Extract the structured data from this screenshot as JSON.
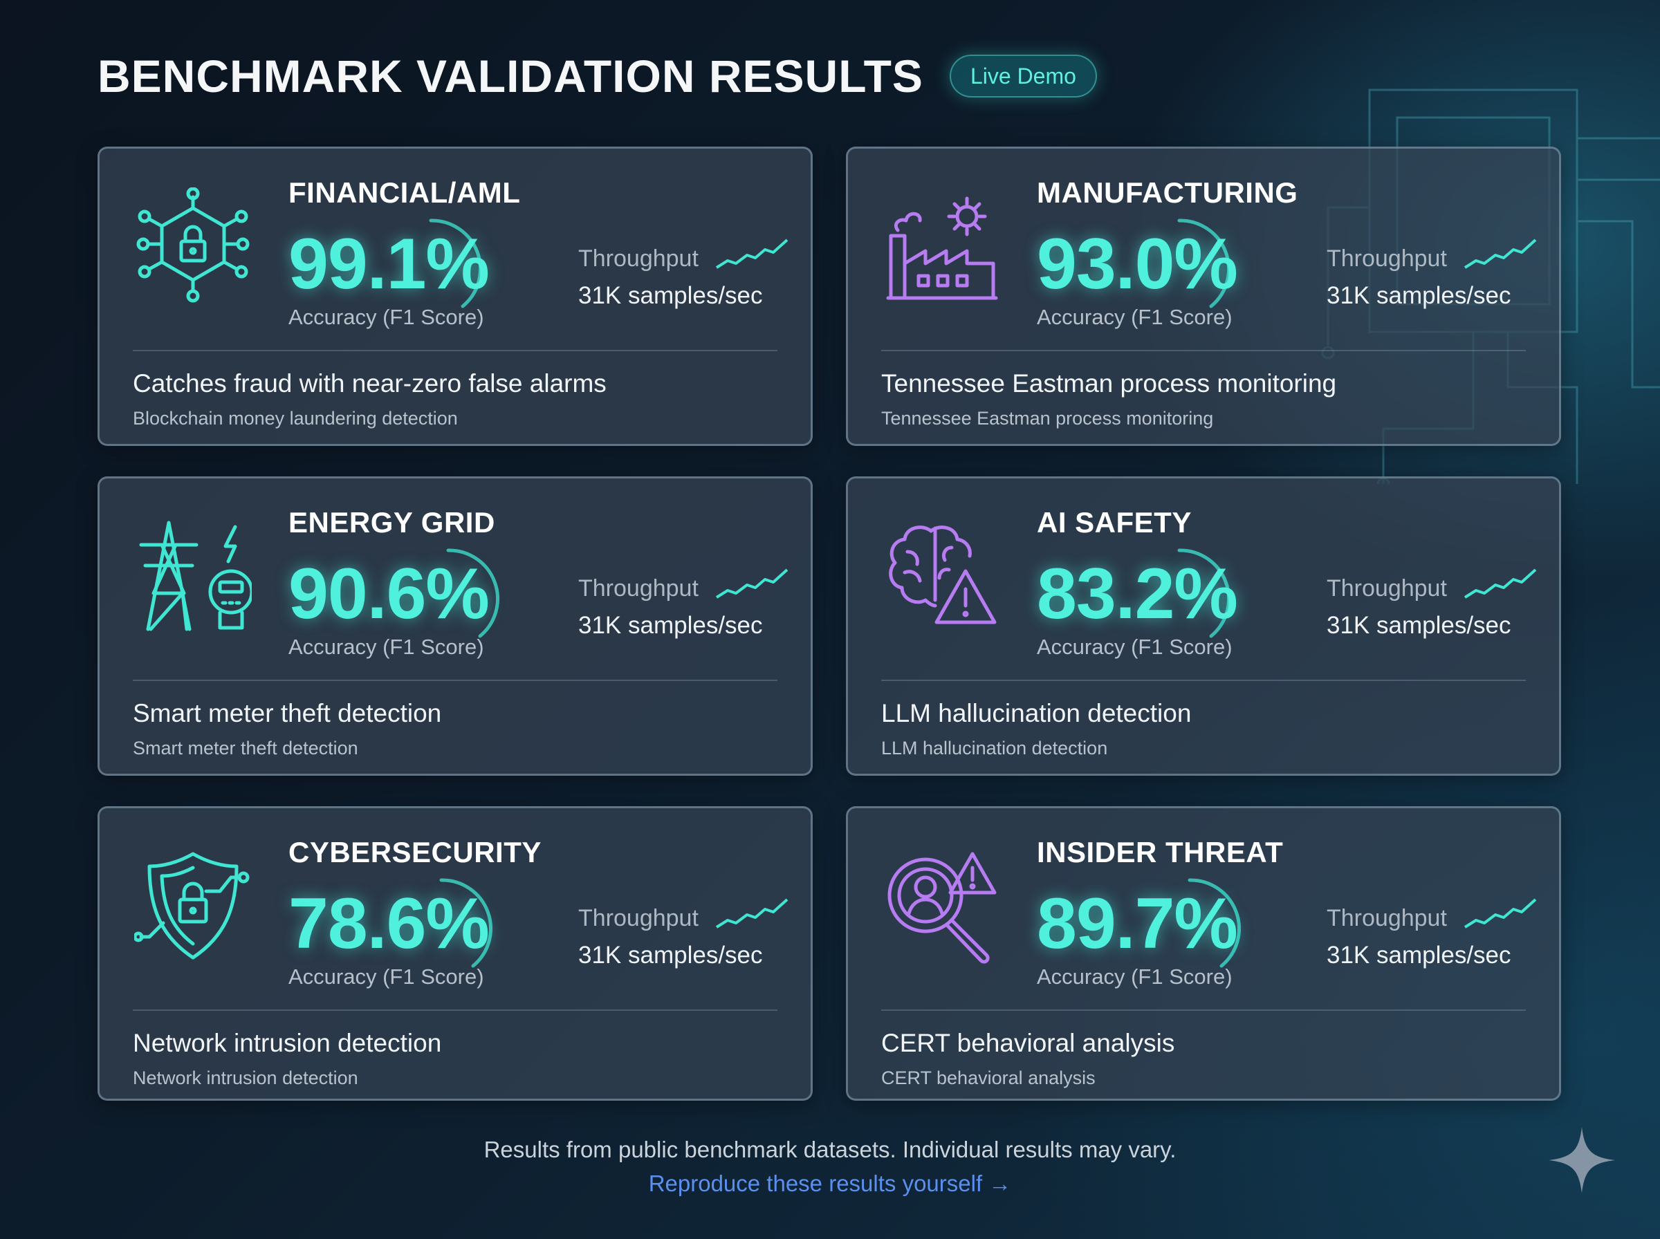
{
  "header": {
    "title": "BENCHMARK VALIDATION RESULTS",
    "badge": "Live Demo"
  },
  "cards": [
    {
      "title": "FINANCIAL/AML",
      "accuracy": "99.1%",
      "accuracy_label": "Accuracy (F1 Score)",
      "throughput_label": "Throughput",
      "throughput_value": "31K samples/sec",
      "headline": "Catches fraud with near-zero false alarms",
      "subline": "Blockchain money laundering detection",
      "icon": "network-lock-icon",
      "icon_color": "#3fe6d2"
    },
    {
      "title": "MANUFACTURING",
      "accuracy": "93.0%",
      "accuracy_label": "Accuracy (F1 Score)",
      "throughput_label": "Throughput",
      "throughput_value": "31K samples/sec",
      "headline": "Tennessee Eastman process monitoring",
      "subline": "Tennessee Eastman process monitoring",
      "icon": "factory-gear-icon",
      "icon_color": "#b77cf2"
    },
    {
      "title": "ENERGY GRID",
      "accuracy": "90.6%",
      "accuracy_label": "Accuracy (F1 Score)",
      "throughput_label": "Throughput",
      "throughput_value": "31K samples/sec",
      "headline": "Smart meter theft detection",
      "subline": "Smart meter theft detection",
      "icon": "power-tower-meter-icon",
      "icon_color": "#3fe6d2"
    },
    {
      "title": "AI SAFETY",
      "accuracy": "83.2%",
      "accuracy_label": "Accuracy (F1 Score)",
      "throughput_label": "Throughput",
      "throughput_value": "31K samples/sec",
      "headline": "LLM hallucination detection",
      "subline": "LLM hallucination detection",
      "icon": "brain-warning-icon",
      "icon_color": "#b77cf2"
    },
    {
      "title": "CYBERSECURITY",
      "accuracy": "78.6%",
      "accuracy_label": "Accuracy (F1 Score)",
      "throughput_label": "Throughput",
      "throughput_value": "31K samples/sec",
      "headline": "Network intrusion detection",
      "subline": "Network intrusion detection",
      "icon": "shield-lock-icon",
      "icon_color": "#3fe6d2"
    },
    {
      "title": "INSIDER THREAT",
      "accuracy": "89.7%",
      "accuracy_label": "Accuracy (F1 Score)",
      "throughput_label": "Throughput",
      "throughput_value": "31K samples/sec",
      "headline": "CERT behavioral analysis",
      "subline": "CERT behavioral analysis",
      "icon": "person-search-warning-icon",
      "icon_color": "#b77cf2"
    }
  ],
  "footer": {
    "note": "Results from public benchmark datasets. Individual results may vary.",
    "link": "Reproduce these results yourself →"
  },
  "colors": {
    "accent": "#4ff0dc",
    "purple": "#b77cf2",
    "link": "#5b8ff0"
  }
}
